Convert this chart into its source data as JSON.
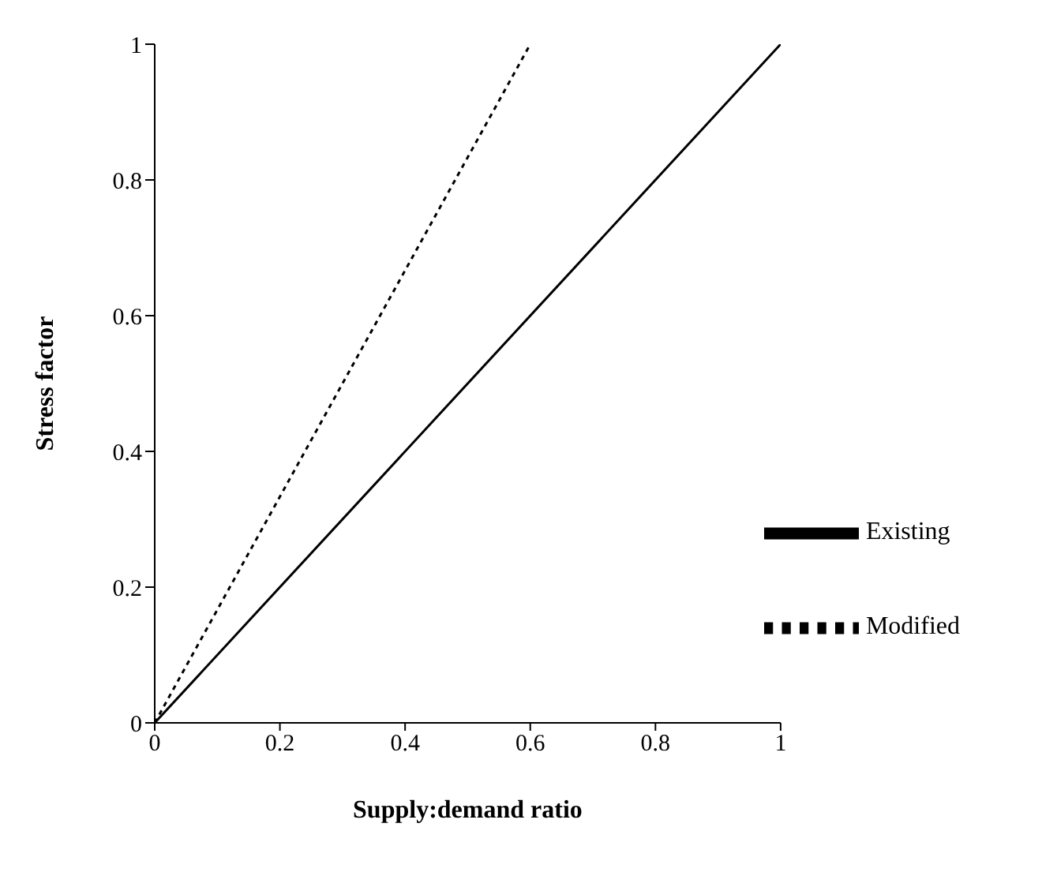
{
  "chart_data": {
    "type": "line",
    "xlabel": "Supply:demand ratio",
    "ylabel": "Stress factor",
    "xlim": [
      0,
      1
    ],
    "ylim": [
      0,
      1
    ],
    "xticks": [
      0,
      0.2,
      0.4,
      0.6,
      0.8,
      1
    ],
    "yticks": [
      0,
      0.2,
      0.4,
      0.6,
      0.8,
      1
    ],
    "grid": false,
    "legend": "bottom right",
    "marker": "none",
    "series": [
      {
        "name": "Existing",
        "color": "#000000",
        "x": [
          0,
          1
        ],
        "values": [
          0,
          1
        ],
        "line_style": "solid"
      },
      {
        "name": "Modified",
        "color": "#000000",
        "x": [
          0,
          0.6
        ],
        "values": [
          0,
          1
        ],
        "line_style": "dotted"
      }
    ]
  }
}
